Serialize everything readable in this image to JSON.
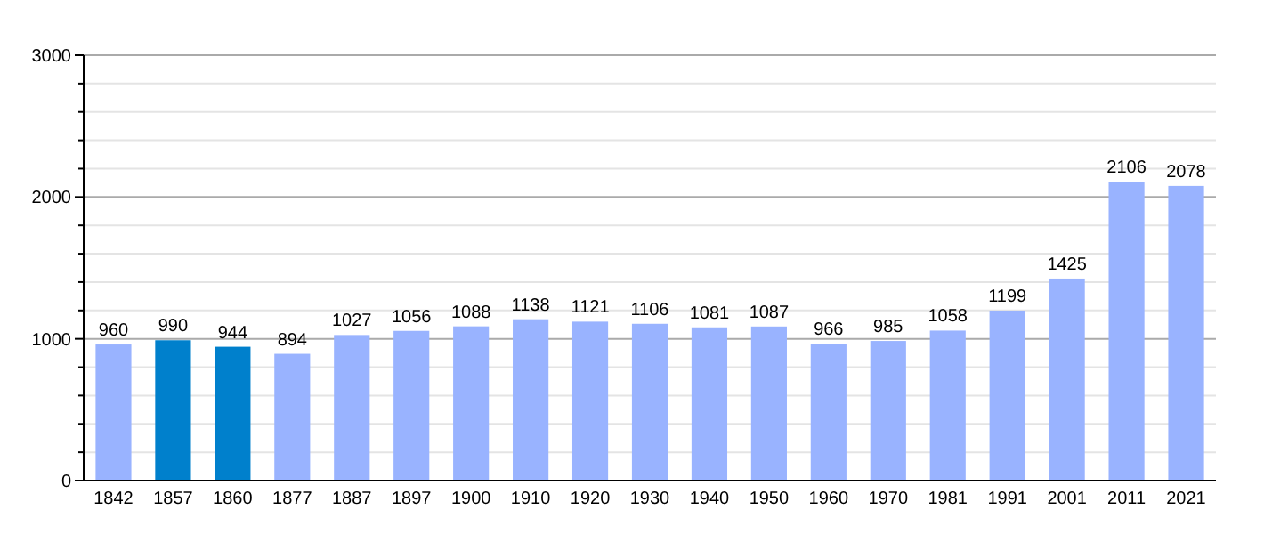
{
  "chart_data": {
    "type": "bar",
    "categories": [
      "1842",
      "1857",
      "1860",
      "1877",
      "1887",
      "1897",
      "1900",
      "1910",
      "1920",
      "1930",
      "1940",
      "1950",
      "1960",
      "1970",
      "1981",
      "1991",
      "2001",
      "2011",
      "2021"
    ],
    "values": [
      960,
      990,
      944,
      894,
      1027,
      1056,
      1088,
      1138,
      1121,
      1106,
      1081,
      1087,
      966,
      985,
      1058,
      1199,
      1425,
      2106,
      2078
    ],
    "colors": [
      "#99b3ff",
      "#0080cc",
      "#0080cc",
      "#99b3ff",
      "#99b3ff",
      "#99b3ff",
      "#99b3ff",
      "#99b3ff",
      "#99b3ff",
      "#99b3ff",
      "#99b3ff",
      "#99b3ff",
      "#99b3ff",
      "#99b3ff",
      "#99b3ff",
      "#99b3ff",
      "#99b3ff",
      "#99b3ff",
      "#99b3ff"
    ],
    "ylim": [
      0,
      3000
    ],
    "yticks": [
      0,
      {
        "value": 200,
        "label": null
      },
      {
        "value": 400,
        "label": null
      },
      {
        "value": 600,
        "label": null
      },
      {
        "value": 800,
        "label": null
      },
      1000,
      {
        "value": 1200,
        "label": null
      },
      {
        "value": 1400,
        "label": null
      },
      {
        "value": 1600,
        "label": null
      },
      {
        "value": 1800,
        "label": null
      },
      2000,
      {
        "value": 2200,
        "label": null
      },
      {
        "value": 2400,
        "label": null
      },
      {
        "value": 2600,
        "label": null
      },
      {
        "value": 2800,
        "label": null
      },
      3000
    ],
    "grid": true,
    "data_labels": true
  }
}
